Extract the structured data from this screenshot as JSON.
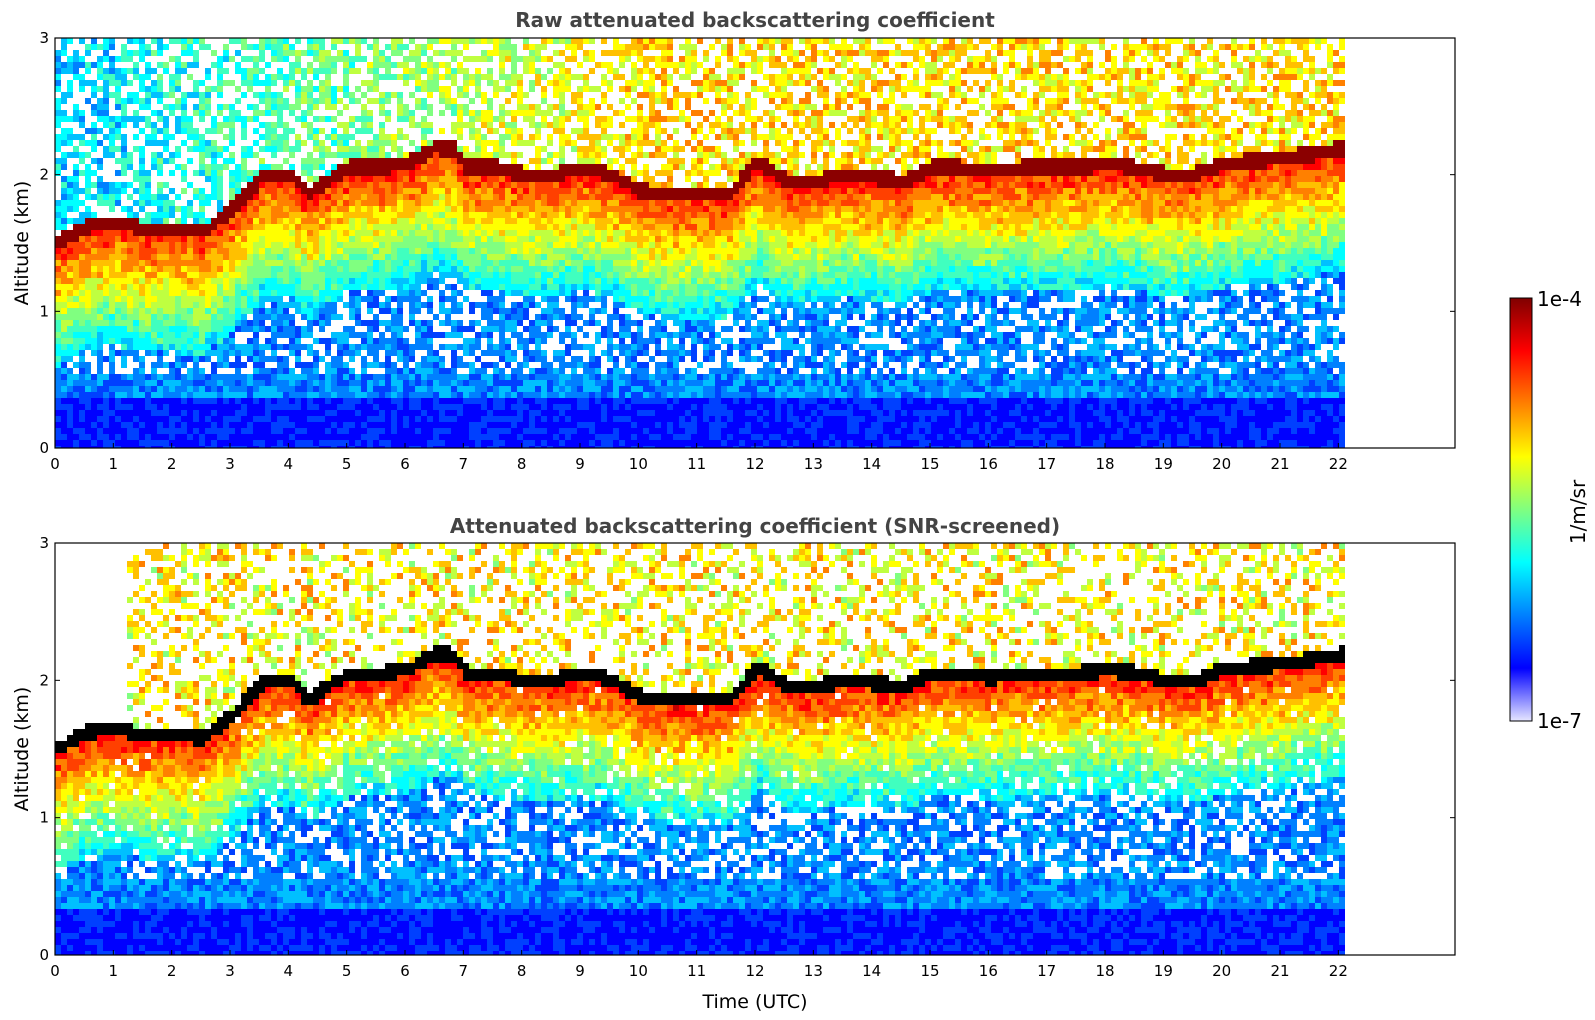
{
  "chart_data": [
    {
      "type": "heatmap",
      "title": "Raw attenuated backscattering coefficient",
      "xlabel": "",
      "ylabel": "Altitude (km)",
      "xlim": [
        0,
        24
      ],
      "ylim": [
        0,
        3
      ],
      "x_ticks": [
        "0",
        "1",
        "2",
        "3",
        "4",
        "5",
        "6",
        "7",
        "8",
        "9",
        "10",
        "11",
        "12",
        "13",
        "14",
        "15",
        "16",
        "17",
        "18",
        "19",
        "20",
        "21",
        "22"
      ],
      "y_ticks": [
        "0",
        "1",
        "2",
        "3"
      ],
      "data_end_time": 22.1,
      "features": {
        "layer_top_altitude_km": {
          "time": [
            0,
            0.5,
            1,
            1.5,
            2,
            2.5,
            3,
            3.5,
            4,
            4.3,
            4.6,
            5,
            5.5,
            6,
            6.5,
            6.8,
            7,
            7.5,
            8,
            8.5,
            9,
            9.5,
            10,
            10.5,
            11,
            11.5,
            12,
            12.5,
            13,
            13.5,
            14,
            14.5,
            15,
            15.5,
            16,
            16.5,
            17,
            17.5,
            18,
            18.5,
            19,
            19.5,
            20,
            20.5,
            21,
            21.5,
            22.1
          ],
          "altitude": [
            1.5,
            1.62,
            1.65,
            1.6,
            1.6,
            1.58,
            1.75,
            1.98,
            2.0,
            1.85,
            1.95,
            2.05,
            2.05,
            2.08,
            2.2,
            2.18,
            2.05,
            2.05,
            2.0,
            2.0,
            2.05,
            2.0,
            1.88,
            1.85,
            1.85,
            1.85,
            2.1,
            1.95,
            1.95,
            2.0,
            1.98,
            1.95,
            2.05,
            2.05,
            2.02,
            2.05,
            2.05,
            2.05,
            2.08,
            2.05,
            2.0,
            2.0,
            2.08,
            2.1,
            2.12,
            2.15,
            2.2
          ]
        },
        "colorbar_range_1_per_m_per_sr": [
          1e-07,
          0.0001
        ]
      }
    },
    {
      "type": "heatmap",
      "title": "Attenuated backscattering coefficient (SNR-screened)",
      "xlabel": "Time (UTC)",
      "ylabel": "Altitude (km)",
      "xlim": [
        0,
        24
      ],
      "ylim": [
        0,
        3
      ],
      "x_ticks": [
        "0",
        "1",
        "2",
        "3",
        "4",
        "5",
        "6",
        "7",
        "8",
        "9",
        "10",
        "11",
        "12",
        "13",
        "14",
        "15",
        "16",
        "17",
        "18",
        "19",
        "20",
        "21",
        "22"
      ],
      "y_ticks": [
        "0",
        "1",
        "2",
        "3"
      ],
      "data_end_time": 22.1
    }
  ],
  "colorbar": {
    "max_label": "1e-4",
    "min_label": "1e-7",
    "unit_label": "1/m/sr",
    "colors": [
      "#800000",
      "#ff0000",
      "#ff8000",
      "#ffff00",
      "#80ff80",
      "#00ffff",
      "#0080ff",
      "#0000ff",
      "#e6e6ff"
    ]
  }
}
